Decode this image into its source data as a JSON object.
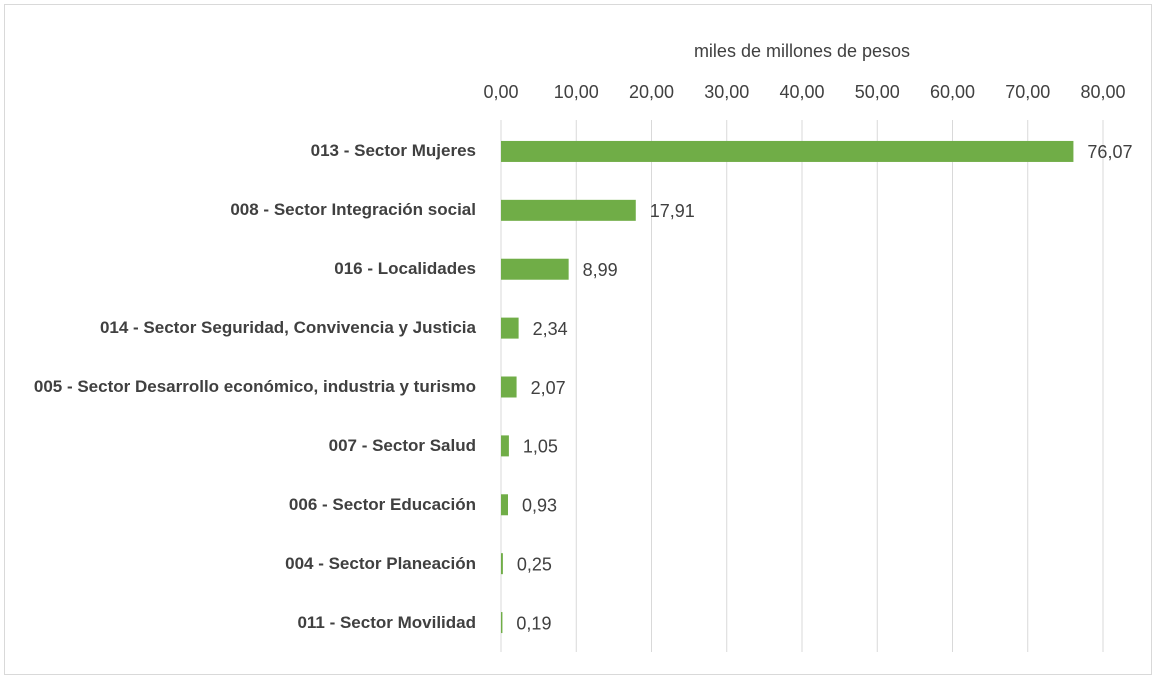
{
  "chart_data": {
    "type": "bar",
    "orientation": "horizontal",
    "x_label": "miles de millones de pesos",
    "categories": [
      "013 - Sector Mujeres",
      "008 - Sector Integración social",
      "016 - Localidades",
      "014 - Sector Seguridad, Convivencia y Justicia",
      "005 - Sector Desarrollo económico, industria y turismo",
      "007 - Sector Salud",
      "006 - Sector Educación",
      "004 - Sector Planeación",
      "011 - Sector Movilidad"
    ],
    "values": [
      76.07,
      17.91,
      8.99,
      2.34,
      2.07,
      1.05,
      0.93,
      0.25,
      0.19
    ],
    "value_labels": [
      "76,07",
      "17,91",
      "8,99",
      "2,34",
      "2,07",
      "1,05",
      "0,93",
      "0,25",
      "0,19"
    ],
    "color": "#70ad47",
    "xlim": [
      0,
      80
    ],
    "xticks": [
      {
        "value": 0,
        "label": "0,00"
      },
      {
        "value": 10,
        "label": "10,00"
      },
      {
        "value": 20,
        "label": "20,00"
      },
      {
        "value": 30,
        "label": "30,00"
      },
      {
        "value": 40,
        "label": "40,00"
      },
      {
        "value": 50,
        "label": "50,00"
      },
      {
        "value": 60,
        "label": "60,00"
      },
      {
        "value": 70,
        "label": "70,00"
      },
      {
        "value": 80,
        "label": "80,00"
      }
    ],
    "grid": true,
    "x_axis_position": "top"
  }
}
